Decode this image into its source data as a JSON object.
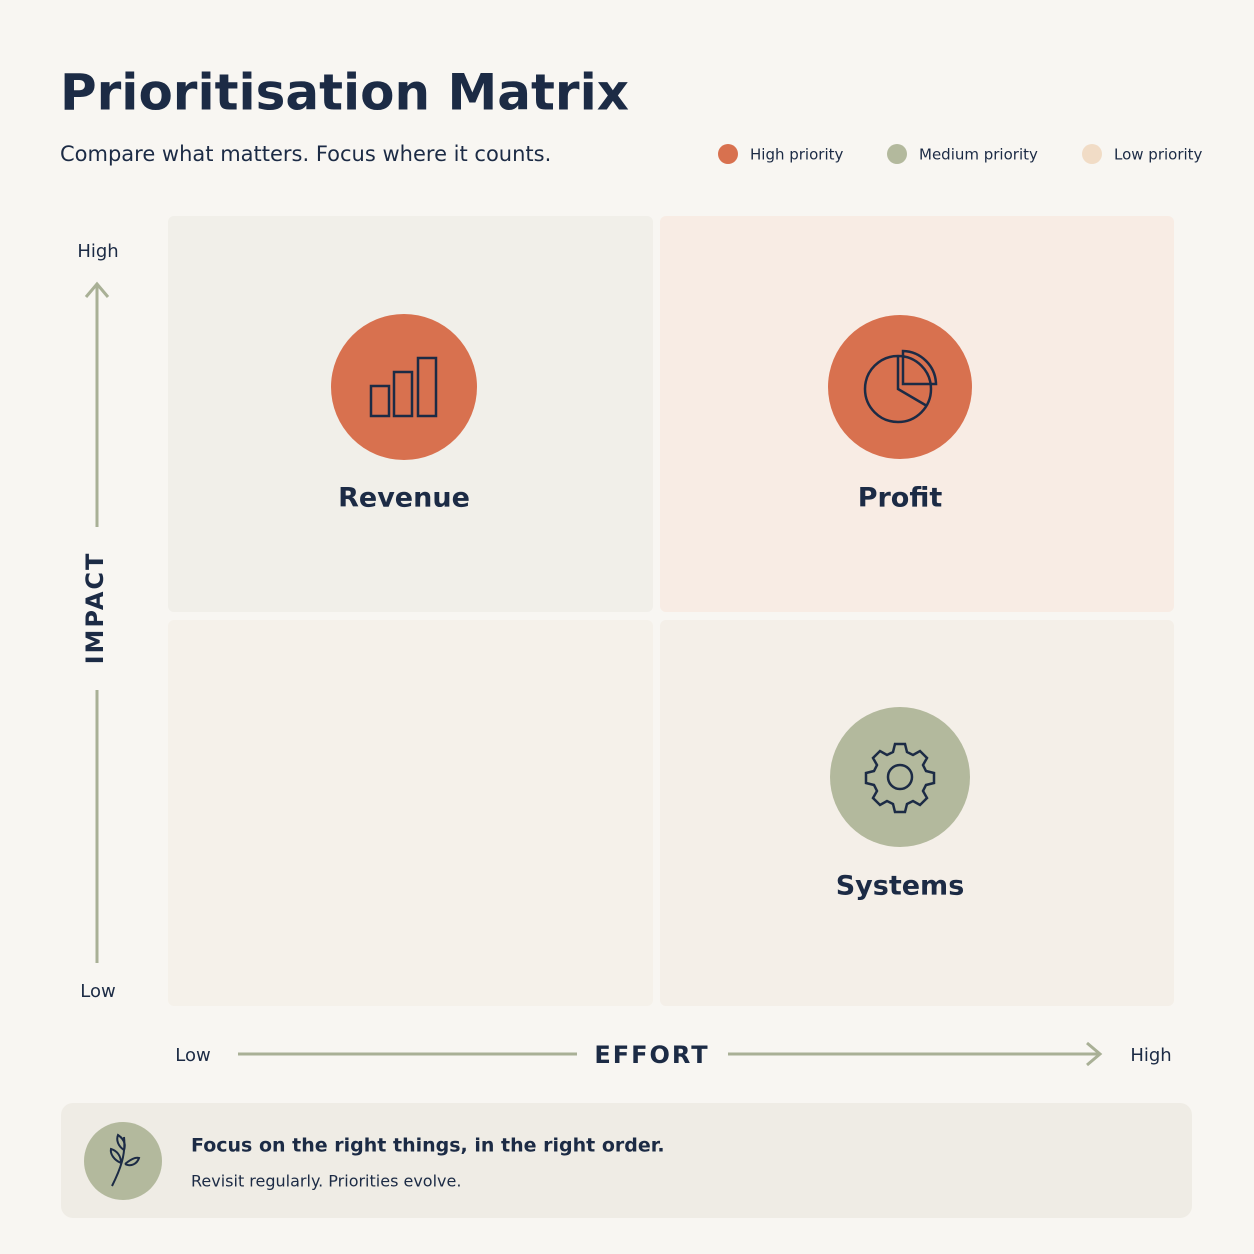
{
  "header": {
    "title": "Prioritisation Matrix",
    "subtitle": "Compare what matters. Focus where it counts."
  },
  "legend": {
    "items": [
      {
        "label": "High priority",
        "color": "#d8714f"
      },
      {
        "label": "Medium priority",
        "color": "#b3b99d"
      },
      {
        "label": "Low priority",
        "color": "#f1dcc6"
      }
    ]
  },
  "axes": {
    "y": {
      "high": "High",
      "label": "IMPACT",
      "low": "Low"
    },
    "x": {
      "low": "Low",
      "label": "EFFORT",
      "high": "High"
    }
  },
  "items": [
    {
      "label": "Revenue",
      "color": "#d8714f"
    },
    {
      "label": "Profit",
      "color": "#d8714f"
    },
    {
      "label": "Systems",
      "color": "#b3b99d"
    }
  ],
  "footer": {
    "title": "Focus on the right things, in the right order.",
    "subtitle": "Revisit regularly. Priorities evolve."
  }
}
